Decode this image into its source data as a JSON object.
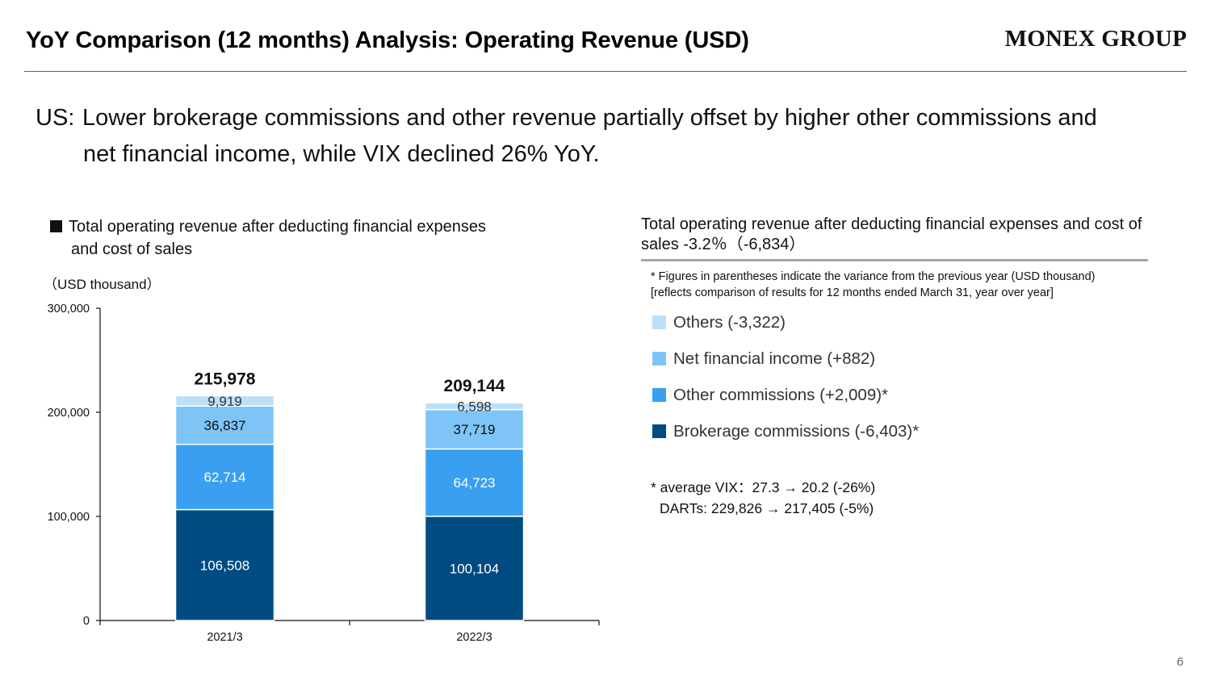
{
  "header": {
    "title": "YoY Comparison (12 months) Analysis: Operating Revenue (USD)",
    "logo": "MONEX GROUP"
  },
  "headline": {
    "prefix": "US:",
    "line1": "Lower brokerage commissions and other revenue partially offset by higher other commissions and",
    "line2": "net financial income, while VIX declined 26% YoY."
  },
  "left_panel": {
    "heading_line1": "Total operating revenue after deducting financial expenses",
    "heading_line2": "and cost of sales",
    "unit": "（USD thousand）"
  },
  "right_panel": {
    "heading": "Total operating revenue after deducting financial expenses and cost of sales -3.2％（-6,834）",
    "footnote_line1": "* Figures in parentheses indicate the variance from the previous year (USD thousand)",
    "footnote_line2": "[reflects comparison of results for 12 months ended March 31, year over year]",
    "legend": [
      {
        "label": "Others (-3,322)",
        "color": "#bde0f9"
      },
      {
        "label": "Net financial income (+882)",
        "color": "#7ec4f6"
      },
      {
        "label": "Other commissions (+2,009)*",
        "color": "#3a9ff0"
      },
      {
        "label": "Brokerage commissions (-6,403)*",
        "color": "#004b82"
      }
    ],
    "note_line1": "* average VIX：27.3 → 20.2 (-26%)",
    "note_line2": "DARTs: 229,826 → 217,405 (-5%)"
  },
  "page_number": "6",
  "chart_data": {
    "type": "bar",
    "stacked": true,
    "categories": [
      "2021/3",
      "2022/3"
    ],
    "series": [
      {
        "name": "Brokerage commissions",
        "values": [
          106508,
          100104
        ],
        "color": "#004b82",
        "label_color": "#ffffff"
      },
      {
        "name": "Other commissions",
        "values": [
          62714,
          64723
        ],
        "color": "#3a9ff0",
        "label_color": "#ffffff"
      },
      {
        "name": "Net financial income",
        "values": [
          36837,
          37719
        ],
        "color": "#7ec4f6",
        "label_color": "#111111"
      },
      {
        "name": "Others",
        "values": [
          9919,
          6598
        ],
        "color": "#bde0f9",
        "label_color": "#333333"
      }
    ],
    "totals": [
      215978,
      209144
    ],
    "ylim": [
      0,
      300000
    ],
    "yticks": [
      0,
      100000,
      200000,
      300000
    ],
    "ylabel": "（USD thousand）",
    "xlabel": "",
    "title": "",
    "grid": false
  }
}
